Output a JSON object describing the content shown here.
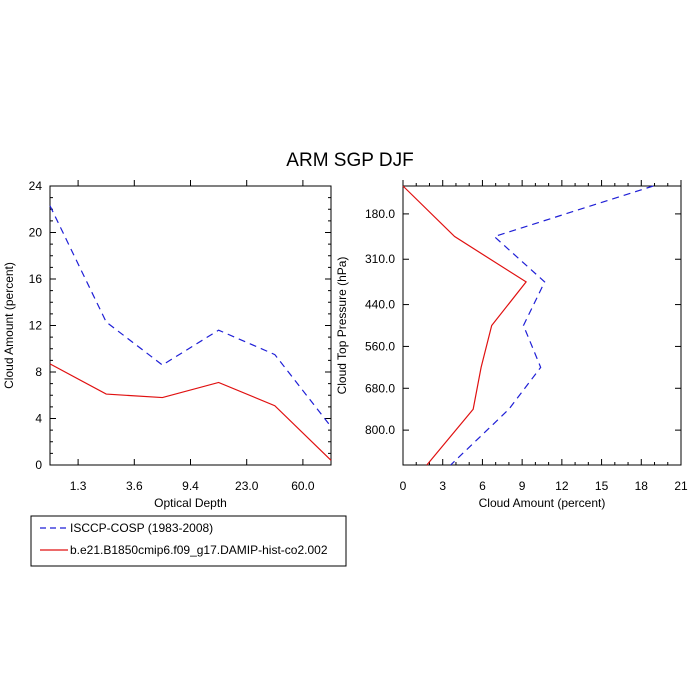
{
  "title": "ARM SGP DJF",
  "colors": {
    "obs": "#1f1fd6",
    "model": "#e01010",
    "axis": "#000000"
  },
  "legend": {
    "position": "bottom-left",
    "entries": [
      {
        "label": "ISCCP-COSP (1983-2008)",
        "style": "dashed",
        "color": "#1f1fd6"
      },
      {
        "label": "b.e21.B1850cmip6.f09_g17.DAMIP-hist-co2.002",
        "style": "solid",
        "color": "#e01010"
      }
    ]
  },
  "chart_data": [
    {
      "type": "line",
      "title": "",
      "xlabel": "Optical Depth",
      "ylabel": "Cloud Amount (percent)",
      "x_index": [
        0,
        1,
        2,
        3,
        4,
        5
      ],
      "xtick_positions": [
        0.5,
        1.5,
        2.5,
        3.5,
        4.5
      ],
      "xtick_labels": [
        "1.3",
        "3.6",
        "9.4",
        "23.0",
        "60.0"
      ],
      "xlim": [
        0,
        5
      ],
      "ylim": [
        0,
        24
      ],
      "yticks": [
        0,
        4,
        8,
        12,
        16,
        20,
        24
      ],
      "ytick_labels": [
        "0",
        "4",
        "8",
        "12",
        "16",
        "20",
        "24"
      ],
      "series": [
        {
          "name": "ISCCP-COSP (1983-2008)",
          "values": [
            22.3,
            12.3,
            8.6,
            11.6,
            9.5,
            3.3
          ]
        },
        {
          "name": "b.e21.B1850cmip6.f09_g17.DAMIP-hist-co2.002",
          "values": [
            8.7,
            6.1,
            5.8,
            7.1,
            5.1,
            0.4
          ]
        }
      ]
    },
    {
      "type": "line",
      "orientation": "vertical-profile",
      "xlabel": "Cloud Amount (percent)",
      "ylabel": "Cloud Top Pressure (hPa)",
      "xlim": [
        0,
        21
      ],
      "xticks": [
        0,
        3,
        6,
        9,
        12,
        15,
        18,
        21
      ],
      "xtick_labels": [
        "0",
        "3",
        "6",
        "9",
        "12",
        "15",
        "18",
        "21"
      ],
      "ylim": [
        100,
        900
      ],
      "y_reversed": true,
      "yticks": [
        180,
        310,
        440,
        560,
        680,
        800
      ],
      "ytick_labels": [
        "180.0",
        "310.0",
        "440.0",
        "560.0",
        "680.0",
        "800.0"
      ],
      "pressure_levels": [
        100,
        245,
        375,
        500,
        620,
        740,
        900
      ],
      "series": [
        {
          "name": "ISCCP-COSP (1983-2008)",
          "values": [
            18.9,
            6.9,
            10.7,
            9.1,
            10.4,
            8.0,
            3.6
          ]
        },
        {
          "name": "b.e21.B1850cmip6.f09_g17.DAMIP-hist-co2.002",
          "values": [
            0.0,
            3.9,
            9.3,
            6.7,
            5.9,
            5.3,
            1.8
          ]
        }
      ]
    }
  ]
}
